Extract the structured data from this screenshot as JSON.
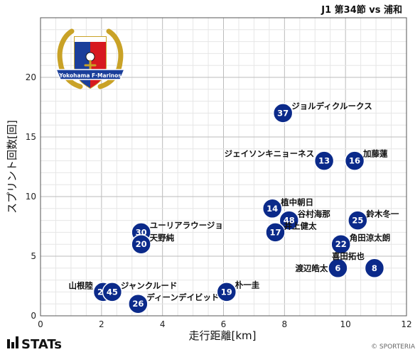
{
  "header": {
    "title": "J1 第34節 vs 浦和"
  },
  "footer": {
    "brand": "STATs",
    "copyright": "© SPORTERIA"
  },
  "logo": {
    "name": "Yokohama F·Marinos crest",
    "banner_text": "Yokohama F·Marinos"
  },
  "colors": {
    "point": "#0b2a8a",
    "grid": "#cccccc",
    "frame": "#555555"
  },
  "chart_data": {
    "type": "scatter",
    "title": "J1 第34節 vs 浦和",
    "xlabel": "走行距離[km]",
    "ylabel": "スプリント回数[回]",
    "xlim": [
      0,
      12
    ],
    "ylim": [
      0,
      25
    ],
    "xticks": [
      0,
      2,
      4,
      6,
      8,
      10,
      12
    ],
    "yticks": [
      0,
      5,
      10,
      15,
      20
    ],
    "grid": true,
    "points": [
      {
        "number": "37",
        "name": "ジョルディクルークス",
        "x": 7.95,
        "y": 17
      },
      {
        "number": "13",
        "name": "ジェイソンキニョーネス",
        "x": 9.3,
        "y": 13
      },
      {
        "number": "16",
        "name": "加藤蓮",
        "x": 10.3,
        "y": 13
      },
      {
        "number": "14",
        "name": "植中朝日",
        "x": 7.6,
        "y": 9
      },
      {
        "number": "48",
        "name": "谷村海那",
        "x": 8.15,
        "y": 8
      },
      {
        "number": "17",
        "name": "井上健太",
        "x": 7.7,
        "y": 7
      },
      {
        "number": "25",
        "name": "鈴木冬一",
        "x": 10.4,
        "y": 8
      },
      {
        "number": "22",
        "name": "角田涼太朗",
        "x": 9.85,
        "y": 6
      },
      {
        "number": "6",
        "name": "渡辺皓太",
        "x": 9.75,
        "y": 4
      },
      {
        "number": "8",
        "name": "喜田拓也",
        "x": 10.95,
        "y": 4
      },
      {
        "number": "30",
        "name": "ユーリアラウージョ",
        "x": 3.3,
        "y": 7
      },
      {
        "number": "20",
        "name": "天野純",
        "x": 3.3,
        "y": 6
      },
      {
        "number": "28",
        "name": "山根陸",
        "x": 2.05,
        "y": 2
      },
      {
        "number": "45",
        "name": "ジャンクルード",
        "x": 2.35,
        "y": 2
      },
      {
        "number": "26",
        "name": "ディーンデイビッド",
        "x": 3.2,
        "y": 1
      },
      {
        "number": "19",
        "name": "朴一圭",
        "x": 6.1,
        "y": 2
      }
    ]
  }
}
